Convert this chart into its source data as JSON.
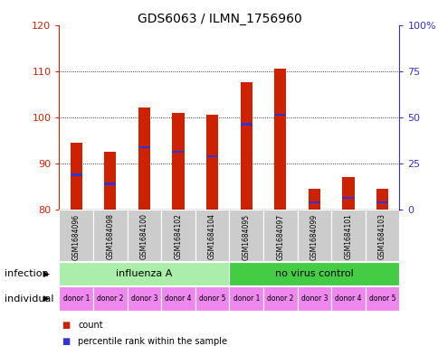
{
  "title": "GDS6063 / ILMN_1756960",
  "samples": [
    "GSM1684096",
    "GSM1684098",
    "GSM1684100",
    "GSM1684102",
    "GSM1684104",
    "GSM1684095",
    "GSM1684097",
    "GSM1684099",
    "GSM1684101",
    "GSM1684103"
  ],
  "count_values": [
    94.5,
    92.5,
    102.0,
    101.0,
    100.5,
    107.5,
    110.5,
    84.5,
    87.0,
    84.5
  ],
  "percentile_values": [
    87.5,
    85.5,
    93.5,
    92.5,
    91.5,
    98.5,
    100.5,
    81.5,
    82.5,
    81.5
  ],
  "ylim": [
    80,
    120
  ],
  "yticks": [
    80,
    90,
    100,
    110,
    120
  ],
  "right_yticks": [
    0,
    25,
    50,
    75,
    100
  ],
  "right_ytick_labels": [
    "0",
    "25",
    "50",
    "75",
    "100%"
  ],
  "bar_color": "#cc2200",
  "percentile_color": "#3333cc",
  "bar_width": 0.35,
  "infection_groups": [
    {
      "label": "influenza A",
      "start": 0,
      "end": 5,
      "color": "#aaeeaa"
    },
    {
      "label": "no virus control",
      "start": 5,
      "end": 10,
      "color": "#44cc44"
    }
  ],
  "individual_labels": [
    "donor 1",
    "donor 2",
    "donor 3",
    "donor 4",
    "donor 5",
    "donor 1",
    "donor 2",
    "donor 3",
    "donor 4",
    "donor 5"
  ],
  "individual_color": "#ee88ee",
  "legend_count_label": "count",
  "legend_percentile_label": "percentile rank within the sample",
  "infection_label": "infection",
  "individual_label": "individual",
  "bg_color": "#ffffff",
  "plot_bg_color": "#ffffff",
  "grid_color": "#000000",
  "left_tick_color": "#cc2200",
  "right_tick_color": "#3333cc",
  "sample_bg_color": "#cccccc"
}
